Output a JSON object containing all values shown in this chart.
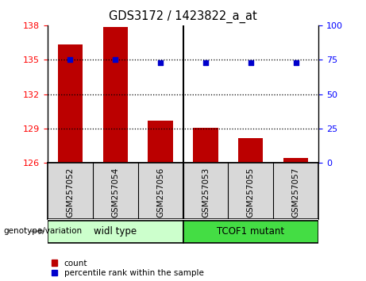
{
  "title": "GDS3172 / 1423822_a_at",
  "categories": [
    "GSM257052",
    "GSM257054",
    "GSM257056",
    "GSM257053",
    "GSM257055",
    "GSM257057"
  ],
  "bar_values": [
    136.35,
    137.85,
    129.72,
    129.05,
    128.15,
    126.42
  ],
  "percentile_values": [
    75,
    75,
    73,
    73,
    73,
    73
  ],
  "bar_color": "#bb0000",
  "percentile_color": "#0000cc",
  "ylim_left": [
    126,
    138
  ],
  "ylim_right": [
    0,
    100
  ],
  "yticks_left": [
    126,
    129,
    132,
    135,
    138
  ],
  "yticks_right": [
    0,
    25,
    50,
    75,
    100
  ],
  "group1_label": "widl type",
  "group2_label": "TCOF1 mutant",
  "group1_color": "#ccffcc",
  "group2_color": "#44dd44",
  "legend_count_label": "count",
  "legend_percentile_label": "percentile rank within the sample",
  "genotype_label": "genotype/variation",
  "bg_color": "#d8d8d8"
}
